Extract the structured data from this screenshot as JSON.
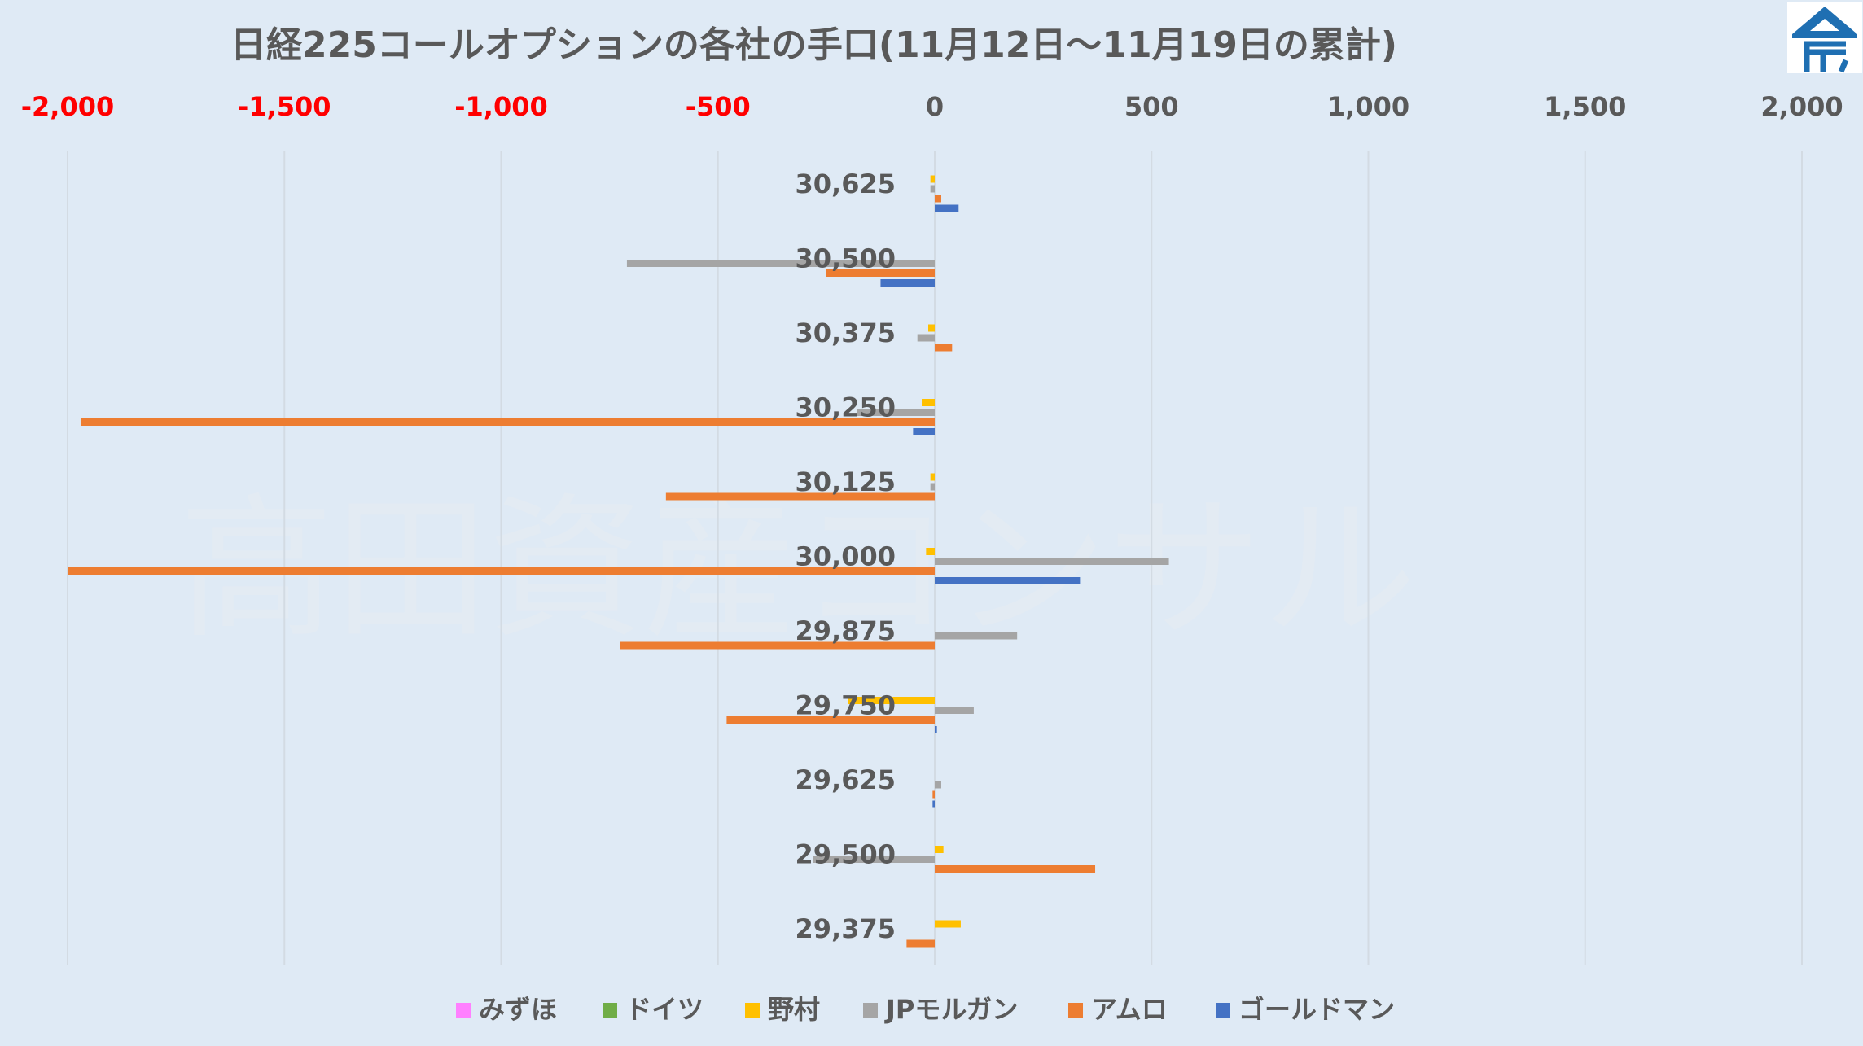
{
  "chart_data": {
    "type": "bar",
    "orientation": "horizontal",
    "title": "日経225コールオプションの各社の手口(11月12日～11月19日の累計)",
    "xlabel": "",
    "ylabel": "",
    "xlim": [
      -2000,
      2000
    ],
    "xticks": [
      -2000,
      -1500,
      -1000,
      -500,
      0,
      500,
      1000,
      1500,
      2000
    ],
    "xtick_labels": [
      "-2,000",
      "-1,500",
      "-1,000",
      "-500",
      "0",
      "500",
      "1,000",
      "1,500",
      "2,000"
    ],
    "negative_tick_color": "#ff0000",
    "grid": "vertical",
    "legend_position": "bottom",
    "categories": [
      "30,625",
      "30,500",
      "30,375",
      "30,250",
      "30,125",
      "30,000",
      "29,875",
      "29,750",
      "29,625",
      "29,500",
      "29,375"
    ],
    "series": [
      {
        "name": "みずほ",
        "color": "#ff80ff",
        "values": [
          0,
          0,
          0,
          0,
          0,
          0,
          0,
          0,
          0,
          0,
          0
        ]
      },
      {
        "name": "ドイツ",
        "color": "#70ad47",
        "values": [
          0,
          0,
          0,
          0,
          0,
          0,
          0,
          0,
          0,
          0,
          0
        ]
      },
      {
        "name": "野村",
        "color": "#ffc000",
        "values": [
          -10,
          0,
          -15,
          -30,
          -10,
          -20,
          0,
          -200,
          0,
          20,
          60
        ]
      },
      {
        "name": "JPモルガン",
        "color": "#a5a5a5",
        "values": [
          -10,
          -710,
          -40,
          -180,
          -10,
          540,
          190,
          90,
          15,
          -280,
          0
        ]
      },
      {
        "name": "アムロ",
        "color": "#ed7d31",
        "values": [
          15,
          -250,
          40,
          -1970,
          -620,
          -2000,
          -725,
          -480,
          -5,
          370,
          -65
        ]
      },
      {
        "name": "ゴールドマン",
        "color": "#4472c4",
        "values": [
          55,
          -125,
          0,
          -50,
          0,
          335,
          0,
          5,
          -5,
          0,
          0
        ]
      }
    ]
  },
  "watermark": "高田資産コンサル",
  "logo": {
    "icon": "shrine-roof-logo-icon",
    "primary": "#1f6fb2"
  }
}
